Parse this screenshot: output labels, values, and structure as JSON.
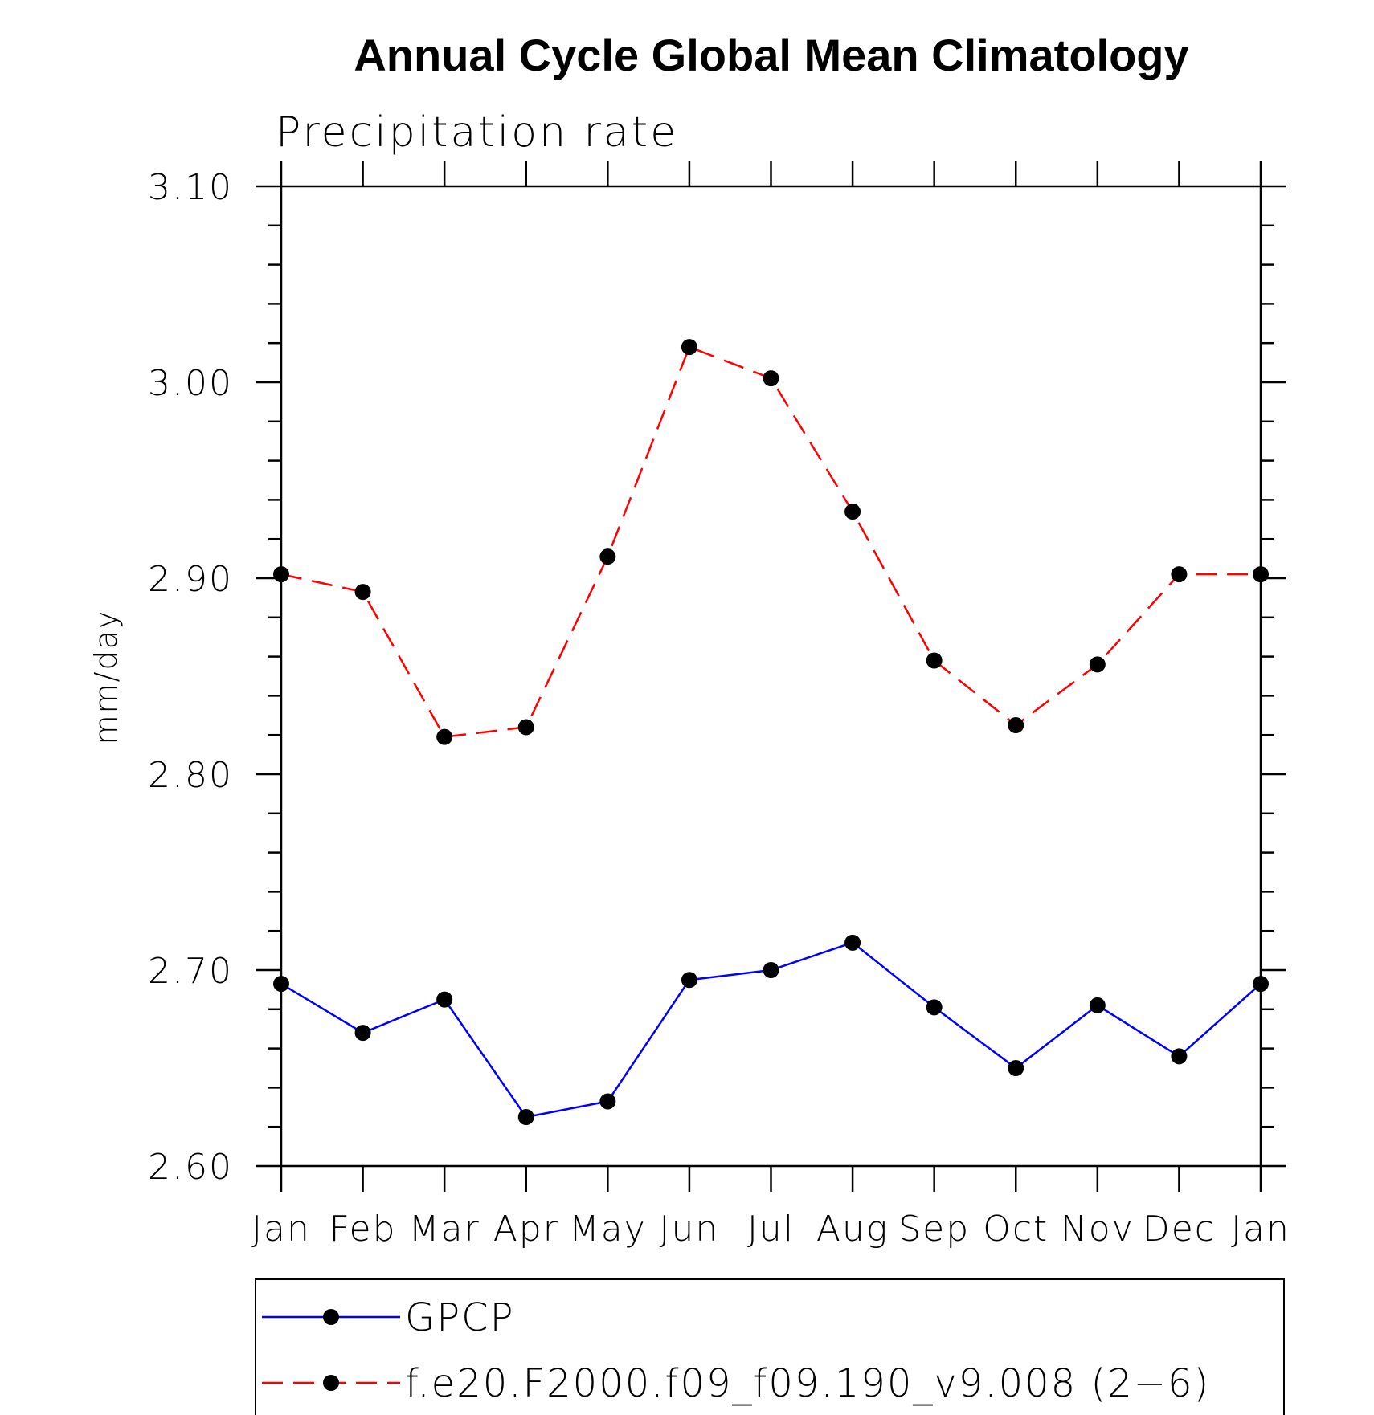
{
  "chart_data": {
    "type": "line",
    "title": "Annual Cycle Global Mean Climatology",
    "subtitle": "Precipitation rate",
    "ylabel": "mm/day",
    "xlabel": "",
    "ylim": [
      2.6,
      3.1
    ],
    "y_major_ticks": [
      "2.60",
      "2.70",
      "2.80",
      "2.90",
      "3.00",
      "3.10"
    ],
    "y_minor_step": 0.02,
    "categories": [
      "Jan",
      "Feb",
      "Mar",
      "Apr",
      "May",
      "Jun",
      "Jul",
      "Aug",
      "Sep",
      "Oct",
      "Nov",
      "Dec",
      "Jan"
    ],
    "grid": false,
    "legend_position": "bottom",
    "series": [
      {
        "name": "GPCP",
        "color": "#0000ff",
        "line_style": "solid",
        "marker": "filled-circle",
        "values": [
          2.693,
          2.668,
          2.685,
          2.625,
          2.633,
          2.695,
          2.7,
          2.714,
          2.681,
          2.65,
          2.682,
          2.656,
          2.693
        ]
      },
      {
        "name": "f.e20.F2000.f09_f09.190_v9.008 (2−6)",
        "color": "#ff0000",
        "line_style": "dashed",
        "marker": "filled-circle",
        "values": [
          2.902,
          2.893,
          2.819,
          2.824,
          2.911,
          3.018,
          3.002,
          2.934,
          2.858,
          2.825,
          2.856,
          2.902,
          2.902
        ]
      }
    ]
  }
}
